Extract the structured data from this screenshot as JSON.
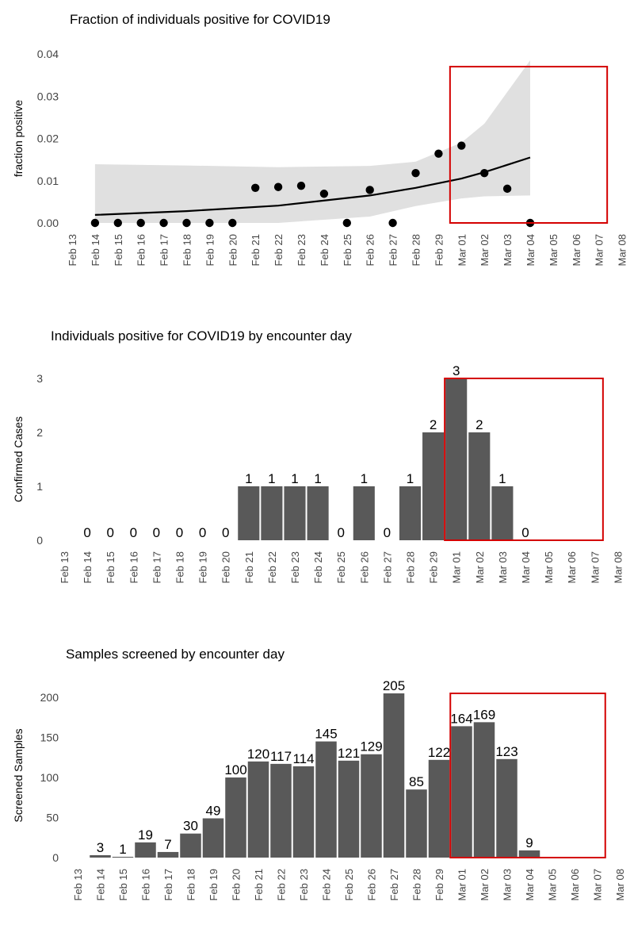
{
  "colors": {
    "bar": "#595959",
    "ribbon": "#e0e0e0",
    "highlight": "#d40000",
    "point": "#000000"
  },
  "chart_data": [
    {
      "type": "scatter",
      "title": "Fraction of individuals positive for COVID19",
      "ylabel": "fraction positive",
      "ylim": [
        0,
        0.04
      ],
      "yticks": [
        "0.00",
        "0.01",
        "0.02",
        "0.03",
        "0.04"
      ],
      "x_tick_labels": [
        "Feb 13",
        "Feb 14",
        "Feb 15",
        "Feb 16",
        "Feb 17",
        "Feb 18",
        "Feb 19",
        "Feb 20",
        "Feb 21",
        "Feb 22",
        "Feb 23",
        "Feb 24",
        "Feb 25",
        "Feb 26",
        "Feb 27",
        "Feb 28",
        "Feb 29",
        "Mar 01",
        "Mar 02",
        "Mar 03",
        "Mar 04",
        "Mar 05",
        "Mar 06",
        "Mar 07",
        "Mar 08"
      ],
      "points": [
        {
          "x": "2020-02-14",
          "y": 0.0
        },
        {
          "x": "2020-02-15",
          "y": 0.0
        },
        {
          "x": "2020-02-16",
          "y": 0.0
        },
        {
          "x": "2020-02-17",
          "y": 0.0
        },
        {
          "x": "2020-02-18",
          "y": 0.0
        },
        {
          "x": "2020-02-19",
          "y": 0.0
        },
        {
          "x": "2020-02-20",
          "y": 0.0
        },
        {
          "x": "2020-02-21",
          "y": 0.0083
        },
        {
          "x": "2020-02-22",
          "y": 0.0085
        },
        {
          "x": "2020-02-23",
          "y": 0.0088
        },
        {
          "x": "2020-02-24",
          "y": 0.0069
        },
        {
          "x": "2020-02-25",
          "y": 0.0
        },
        {
          "x": "2020-02-26",
          "y": 0.0078
        },
        {
          "x": "2020-02-27",
          "y": 0.0
        },
        {
          "x": "2020-02-28",
          "y": 0.0118
        },
        {
          "x": "2020-02-29",
          "y": 0.0164
        },
        {
          "x": "2020-03-01",
          "y": 0.0183
        },
        {
          "x": "2020-03-02",
          "y": 0.0118
        },
        {
          "x": "2020-03-03",
          "y": 0.0081
        },
        {
          "x": "2020-03-04",
          "y": 0.0
        }
      ],
      "fit": [
        {
          "x": "2020-02-14",
          "y": 0.0019,
          "lower": 0.0,
          "upper": 0.0139
        },
        {
          "x": "2020-02-18",
          "y": 0.0028,
          "lower": 0.0,
          "upper": 0.0136
        },
        {
          "x": "2020-02-22",
          "y": 0.0041,
          "lower": 0.0,
          "upper": 0.0132
        },
        {
          "x": "2020-02-26",
          "y": 0.0065,
          "lower": 0.0015,
          "upper": 0.0135
        },
        {
          "x": "2020-02-28",
          "y": 0.0083,
          "lower": 0.004,
          "upper": 0.0145
        },
        {
          "x": "2020-03-01",
          "y": 0.0105,
          "lower": 0.0058,
          "upper": 0.019
        },
        {
          "x": "2020-03-02",
          "y": 0.012,
          "lower": 0.0063,
          "upper": 0.0235
        },
        {
          "x": "2020-03-04",
          "y": 0.0155,
          "lower": 0.0065,
          "upper": 0.0385
        }
      ],
      "highlight_range": [
        "2020-03-01",
        "2020-03-07"
      ],
      "highlight_ylim": [
        0,
        0.037
      ]
    },
    {
      "type": "bar",
      "title": "Individuals positive for COVID19 by encounter day",
      "ylabel": "Confirmed Cases",
      "ylim": [
        0,
        3
      ],
      "yticks": [
        "0",
        "1",
        "2",
        "3"
      ],
      "x_tick_labels": [
        "Feb 13",
        "Feb 14",
        "Feb 15",
        "Feb 16",
        "Feb 17",
        "Feb 18",
        "Feb 19",
        "Feb 20",
        "Feb 21",
        "Feb 22",
        "Feb 23",
        "Feb 24",
        "Feb 25",
        "Feb 26",
        "Feb 27",
        "Feb 28",
        "Feb 29",
        "Mar 01",
        "Mar 02",
        "Mar 03",
        "Mar 04",
        "Mar 05",
        "Mar 06",
        "Mar 07",
        "Mar 08"
      ],
      "categories": [
        "2020-02-14",
        "2020-02-15",
        "2020-02-16",
        "2020-02-17",
        "2020-02-18",
        "2020-02-19",
        "2020-02-20",
        "2020-02-21",
        "2020-02-22",
        "2020-02-23",
        "2020-02-24",
        "2020-02-25",
        "2020-02-26",
        "2020-02-27",
        "2020-02-28",
        "2020-02-29",
        "2020-03-01",
        "2020-03-02",
        "2020-03-03",
        "2020-03-04"
      ],
      "values": [
        0,
        0,
        0,
        0,
        0,
        0,
        0,
        1,
        1,
        1,
        1,
        0,
        1,
        0,
        1,
        2,
        3,
        2,
        1,
        0
      ],
      "data_labels": [
        "0",
        "0",
        "0",
        "0",
        "0",
        "0",
        "0",
        "1",
        "1",
        "1",
        "1",
        "0",
        "1",
        "0",
        "1",
        "2",
        "3",
        "2",
        "1",
        "0"
      ],
      "highlight_range": [
        "2020-03-01",
        "2020-03-07"
      ],
      "highlight_ylim": [
        0,
        3
      ]
    },
    {
      "type": "bar",
      "title": "Samples screened by encounter day",
      "ylabel": "Screened Samples",
      "ylim": [
        0,
        205
      ],
      "yticks": [
        "0",
        "50",
        "100",
        "150",
        "200"
      ],
      "x_tick_labels": [
        "Feb 13",
        "Feb 14",
        "Feb 15",
        "Feb 16",
        "Feb 17",
        "Feb 18",
        "Feb 19",
        "Feb 20",
        "Feb 21",
        "Feb 22",
        "Feb 23",
        "Feb 24",
        "Feb 25",
        "Feb 26",
        "Feb 27",
        "Feb 28",
        "Feb 29",
        "Mar 01",
        "Mar 02",
        "Mar 03",
        "Mar 04",
        "Mar 05",
        "Mar 06",
        "Mar 07",
        "Mar 08"
      ],
      "categories": [
        "2020-02-14",
        "2020-02-15",
        "2020-02-16",
        "2020-02-17",
        "2020-02-18",
        "2020-02-19",
        "2020-02-20",
        "2020-02-21",
        "2020-02-22",
        "2020-02-23",
        "2020-02-24",
        "2020-02-25",
        "2020-02-26",
        "2020-02-27",
        "2020-02-28",
        "2020-02-29",
        "2020-03-01",
        "2020-03-02",
        "2020-03-03",
        "2020-03-04"
      ],
      "values": [
        3,
        1,
        19,
        7,
        30,
        49,
        100,
        120,
        117,
        114,
        145,
        121,
        129,
        205,
        85,
        122,
        164,
        169,
        123,
        9
      ],
      "data_labels": [
        "3",
        "1",
        "19",
        "7",
        "30",
        "49",
        "100",
        "120",
        "117",
        "114",
        "145",
        "121",
        "129",
        "205",
        "85",
        "122",
        "164",
        "169",
        "123",
        "9"
      ],
      "highlight_range": [
        "2020-03-01",
        "2020-03-07"
      ],
      "highlight_ylim": [
        0,
        205
      ]
    }
  ]
}
